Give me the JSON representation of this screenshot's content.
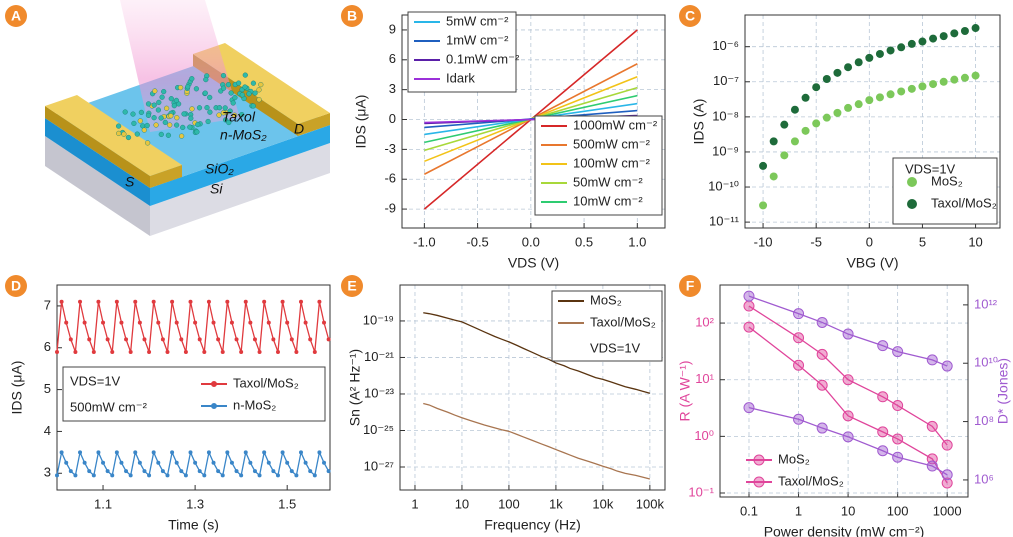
{
  "illustration": {
    "panel": "A",
    "labels": [
      "Taxol",
      "n-MoS₂",
      "S",
      "D",
      "SiO₂",
      "Si"
    ]
  },
  "chart_data": [
    {
      "panel": "B",
      "type": "line",
      "xlabel": "VDS (V)",
      "ylabel": "IDS (μA)",
      "grid": true,
      "x": [
        -1,
        1
      ],
      "xlim": [
        -1.21,
        1.26
      ],
      "ylim": [
        -10.9,
        10.5
      ],
      "xticks": [
        {
          "value": -1,
          "label": "-1.0"
        },
        -0.5,
        {
          "value": 0,
          "label": "0.0"
        },
        0.5,
        {
          "value": 1,
          "label": "1.0"
        }
      ],
      "yticks": [
        -9,
        -6,
        -3,
        0,
        3,
        6,
        9
      ],
      "series": [
        {
          "name": "1000mW cm⁻²",
          "color": "#d62728",
          "values": [
            -9,
            9
          ]
        },
        {
          "name": "500mW cm⁻²",
          "color": "#e8772e",
          "values": [
            -5.5,
            5.6
          ]
        },
        {
          "name": "100mW cm⁻²",
          "color": "#f2c318",
          "values": [
            -4.2,
            4.3
          ]
        },
        {
          "name": "50mW cm⁻²",
          "color": "#a8d83a",
          "values": [
            -3.1,
            3.2
          ]
        },
        {
          "name": "10mW cm⁻²",
          "color": "#2ecc71",
          "values": [
            -2.3,
            2.4
          ]
        },
        {
          "name": "5mW cm⁻²",
          "color": "#29b6e8",
          "values": [
            -1.5,
            1.6
          ]
        },
        {
          "name": "1mW cm⁻²",
          "color": "#1f5fbf",
          "values": [
            -0.8,
            0.9
          ]
        },
        {
          "name": "0.1mW cm⁻²",
          "color": "#5a1fa8",
          "values": [
            -0.4,
            0.4
          ]
        },
        {
          "name": "Idark",
          "color": "#9b30d9",
          "values": [
            -0.3,
            0.3
          ]
        }
      ]
    },
    {
      "panel": "C",
      "type": "scatter",
      "xlabel": "VBG (V)",
      "ylabel": "IDS (A)",
      "grid": true,
      "log_y": true,
      "annotations": [
        "VDS=1V"
      ],
      "x": [
        -10,
        -9,
        -8,
        -7,
        -6,
        -5,
        -4,
        -3,
        -2,
        -1,
        0,
        1,
        2,
        3,
        4,
        5,
        6,
        7,
        8,
        9,
        10
      ],
      "xlim": [
        -11.7,
        12.3
      ],
      "ylim": [
        6.8e-12,
        8e-06
      ],
      "xticks": [
        -10,
        -5,
        0,
        5,
        10
      ],
      "yticks": [
        {
          "value": 1e-11,
          "label": "10⁻¹¹"
        },
        {
          "value": 1e-10,
          "label": "10⁻¹⁰"
        },
        {
          "value": 1e-09,
          "label": "10⁻⁹"
        },
        {
          "value": 1e-08,
          "label": "10⁻⁸"
        },
        {
          "value": 1e-07,
          "label": "10⁻⁷"
        },
        {
          "value": 1e-06,
          "label": "10⁻⁶"
        }
      ],
      "series": [
        {
          "name": "MoS₂",
          "color": "#7cc85a",
          "values": [
            3e-11,
            2e-10,
            8e-10,
            2e-09,
            4e-09,
            6.5e-09,
            9.5e-09,
            1.3e-08,
            1.8e-08,
            2.3e-08,
            3e-08,
            3.6e-08,
            4.4e-08,
            5.3e-08,
            6.3e-08,
            7.4e-08,
            8.6e-08,
            1e-07,
            1.15e-07,
            1.3e-07,
            1.5e-07
          ]
        },
        {
          "name": "Taxol/MoS₂",
          "color": "#1e6b3a",
          "values": [
            4e-10,
            2e-09,
            6e-09,
            1.6e-08,
            3.5e-08,
            7e-08,
            1.2e-07,
            1.8e-07,
            2.6e-07,
            3.6e-07,
            4.8e-07,
            6.2e-07,
            7.8e-07,
            9.6e-07,
            1.2e-06,
            1.4e-06,
            1.7e-06,
            2e-06,
            2.4e-06,
            2.8e-06,
            3.4e-06
          ]
        }
      ]
    },
    {
      "panel": "D",
      "type": "line",
      "markers": true,
      "grid": false,
      "xlabel": "Time (s)",
      "ylabel": "IDS (μA)",
      "annotations": [
        "VDS=1V",
        "500mW cm⁻²"
      ],
      "xlim": [
        1.0,
        1.593
      ],
      "ylim": [
        2.6,
        7.5
      ],
      "xticks": [
        1.1,
        1.3,
        1.5
      ],
      "yticks": [
        3,
        4,
        5,
        6,
        7
      ],
      "x": [
        1,
        1.01,
        1.02,
        1.03,
        1.04,
        1.05,
        1.06,
        1.07,
        1.08,
        1.09,
        1.1,
        1.11,
        1.12,
        1.13,
        1.14,
        1.15,
        1.16,
        1.17,
        1.18,
        1.19,
        1.2,
        1.21,
        1.22,
        1.23,
        1.24,
        1.25,
        1.26,
        1.27,
        1.28,
        1.29,
        1.3,
        1.31,
        1.32,
        1.33,
        1.34,
        1.35,
        1.36,
        1.37,
        1.38,
        1.39,
        1.4,
        1.41,
        1.42,
        1.43,
        1.44,
        1.45,
        1.46,
        1.47,
        1.48,
        1.49,
        1.5,
        1.51,
        1.52,
        1.53,
        1.54,
        1.55,
        1.56,
        1.57,
        1.58,
        1.59
      ],
      "series": [
        {
          "name": "Taxol/MoS₂",
          "color": "#e03a3e",
          "values": [
            5.9,
            7.1,
            6.6,
            6.2,
            5.9,
            7.1,
            6.6,
            6.2,
            5.9,
            7.1,
            6.6,
            6.2,
            5.9,
            7.1,
            6.6,
            6.2,
            5.9,
            7.1,
            6.6,
            6.2,
            5.9,
            7.1,
            6.6,
            6.2,
            5.9,
            7.1,
            6.6,
            6.2,
            5.9,
            7.1,
            6.6,
            6.2,
            5.9,
            7.1,
            6.6,
            6.2,
            5.9,
            7.1,
            6.6,
            6.2,
            5.9,
            7.1,
            6.6,
            6.2,
            5.9,
            7.1,
            6.6,
            6.2,
            5.9,
            7.1,
            6.6,
            6.2,
            5.9,
            7.1,
            6.6,
            6.2,
            5.9,
            7.1,
            6.6,
            6.2
          ]
        },
        {
          "name": "n-MoS₂",
          "color": "#3a86c8",
          "values": [
            2.95,
            3.5,
            3.25,
            3.05,
            2.95,
            3.5,
            3.25,
            3.05,
            2.95,
            3.5,
            3.25,
            3.05,
            2.95,
            3.5,
            3.25,
            3.05,
            2.95,
            3.5,
            3.25,
            3.05,
            2.95,
            3.5,
            3.25,
            3.05,
            2.95,
            3.5,
            3.25,
            3.05,
            2.95,
            3.5,
            3.25,
            3.05,
            2.95,
            3.5,
            3.25,
            3.05,
            2.95,
            3.5,
            3.25,
            3.05,
            2.95,
            3.5,
            3.25,
            3.05,
            2.95,
            3.5,
            3.25,
            3.05,
            2.95,
            3.5,
            3.25,
            3.05,
            2.95,
            3.5,
            3.25,
            3.05,
            2.95,
            3.5,
            3.25,
            3.05
          ]
        }
      ]
    },
    {
      "panel": "E",
      "type": "line",
      "grid": true,
      "log_x": true,
      "log_y": true,
      "xlabel": "Frequency (Hz)",
      "ylabel": "Sn (A² Hz⁻¹)",
      "annotations": [
        "VDS=1V"
      ],
      "xlim": [
        0.48,
        210000
      ],
      "ylim": [
        5.5e-29,
        9.3e-18
      ],
      "xticks": [
        1,
        10,
        100,
        {
          "value": 1000,
          "label": "1k"
        },
        {
          "value": 10000,
          "label": "10k"
        },
        {
          "value": 100000,
          "label": "100k"
        }
      ],
      "yticks": [
        {
          "value": 1e-27,
          "label": "10⁻²⁷"
        },
        {
          "value": 1e-25,
          "label": "10⁻²⁵"
        },
        {
          "value": 1e-23,
          "label": "10⁻²³"
        },
        {
          "value": 1e-21,
          "label": "10⁻²¹"
        },
        {
          "value": 1e-19,
          "label": "10⁻¹⁹"
        }
      ],
      "x": [
        1.5,
        2,
        3,
        5,
        7,
        10,
        15,
        20,
        30,
        50,
        70,
        100,
        150,
        200,
        300,
        500,
        700,
        1000,
        1500,
        2000,
        3000,
        5000,
        7000,
        10000,
        15000,
        20000,
        30000,
        50000,
        70000,
        100000
      ],
      "series": [
        {
          "name": "MoS₂",
          "color": "#5a3410",
          "values": [
            2.8e-19,
            2.5e-19,
            2e-19,
            1.4e-19,
            1.1e-19,
            8.9e-20,
            5.6e-20,
            4e-20,
            2.5e-20,
            1.4e-20,
            1e-20,
            7.1e-21,
            4.5e-21,
            3.2e-21,
            2e-21,
            1.1e-21,
            7.9e-22,
            5e-22,
            3.5e-22,
            2.5e-22,
            1.8e-22,
            1.1e-22,
            7.9e-23,
            6.3e-23,
            4.5e-23,
            3.5e-23,
            2.5e-23,
            1.8e-23,
            1.4e-23,
            1.1e-23
          ]
        },
        {
          "name": "Taxol/MoS₂",
          "color": "#a87550",
          "values": [
            3e-24,
            2.5e-24,
            1.6e-24,
            1e-24,
            7e-25,
            5e-25,
            3.5e-25,
            2.8e-25,
            2e-25,
            1.4e-25,
            1.1e-25,
            9e-26,
            6e-26,
            4.5e-26,
            3e-26,
            1.8e-26,
            1.3e-26,
            9e-27,
            6e-27,
            4.5e-27,
            3e-27,
            2e-27,
            1.5e-27,
            1.1e-27,
            8e-28,
            6e-28,
            4.5e-28,
            3.5e-28,
            2.8e-28,
            2.2e-28
          ]
        }
      ]
    },
    {
      "panel": "F",
      "type": "line",
      "markers": true,
      "grid": true,
      "log_x": true,
      "log_y": true,
      "log_y2": true,
      "xlabel": "Power density (mW cm⁻²)",
      "ylabel": "R (A W⁻¹)",
      "y2label": "D* (Jones)",
      "ylabel_color": "#e0459b",
      "y2label_color": "#a05bd0",
      "xlim": [
        0.026,
        2630
      ],
      "ylim": [
        0.085,
        470
      ],
      "y2lim": [
        260000,
        4800000000000.0
      ],
      "xticks": [
        0.1,
        1,
        10,
        100,
        1000
      ],
      "yticks": [
        {
          "value": 0.1,
          "label": "10⁻¹"
        },
        {
          "value": 1,
          "label": "10⁰"
        },
        {
          "value": 10,
          "label": "10¹"
        },
        {
          "value": 100,
          "label": "10²"
        }
      ],
      "y2ticks": [
        {
          "value": 1000000,
          "label": "10⁶"
        },
        {
          "value": 100000000,
          "label": "10⁸"
        },
        {
          "value": 10000000000,
          "label": "10¹⁰"
        },
        {
          "value": 1000000000000,
          "label": "10¹²"
        }
      ],
      "x": [
        0.1,
        1,
        3,
        10,
        50,
        100,
        500,
        1000
      ],
      "series": [
        {
          "name": "MoS₂",
          "color": "#e0459b",
          "values": [
            85,
            18,
            8,
            2.3,
            1.2,
            0.9,
            0.4,
            0.15
          ]
        },
        {
          "name": "Taxol/MoS₂",
          "color": "#e0459b",
          "values": [
            200,
            55,
            28,
            10,
            5,
            3.5,
            1.5,
            0.7
          ]
        },
        {
          "color": "#a05bd0",
          "axis": "y2",
          "values": [
            300000000,
            120000000,
            60000000,
            30000000,
            10000000,
            6000000,
            3000000,
            1500000
          ]
        },
        {
          "color": "#a05bd0",
          "axis": "y2",
          "values": [
            2000000000000,
            500000000000,
            250000000000,
            100000000000,
            40000000000,
            25000000000,
            13000000000,
            8000000000
          ]
        }
      ]
    }
  ]
}
